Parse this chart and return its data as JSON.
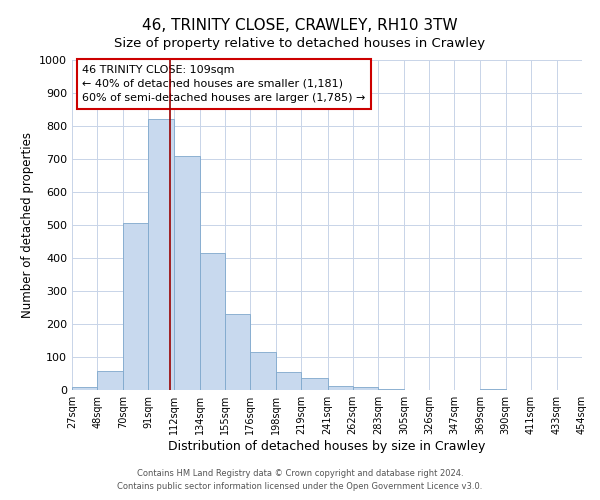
{
  "title": "46, TRINITY CLOSE, CRAWLEY, RH10 3TW",
  "subtitle": "Size of property relative to detached houses in Crawley",
  "xlabel": "Distribution of detached houses by size in Crawley",
  "ylabel": "Number of detached properties",
  "bin_edges": [
    27,
    48,
    70,
    91,
    112,
    134,
    155,
    176,
    198,
    219,
    241,
    262,
    283,
    305,
    326,
    347,
    369,
    390,
    411,
    433,
    454
  ],
  "bar_heights": [
    8,
    57,
    505,
    820,
    710,
    415,
    230,
    115,
    55,
    35,
    12,
    10,
    3,
    1,
    0,
    0,
    2,
    0,
    0,
    0
  ],
  "bar_color": "#c8d9ee",
  "bar_edge_color": "#7fa8cc",
  "red_line_x": 109,
  "ylim": [
    0,
    1000
  ],
  "yticks": [
    0,
    100,
    200,
    300,
    400,
    500,
    600,
    700,
    800,
    900,
    1000
  ],
  "annotation_title": "46 TRINITY CLOSE: 109sqm",
  "annotation_line1": "← 40% of detached houses are smaller (1,181)",
  "annotation_line2": "60% of semi-detached houses are larger (1,785) →",
  "annotation_box_facecolor": "#ffffff",
  "annotation_box_edgecolor": "#cc0000",
  "footer_line1": "Contains HM Land Registry data © Crown copyright and database right 2024.",
  "footer_line2": "Contains public sector information licensed under the Open Government Licence v3.0.",
  "background_color": "#ffffff",
  "grid_color": "#c8d4e8",
  "title_fontsize": 11,
  "subtitle_fontsize": 9.5,
  "ylabel_fontsize": 8.5,
  "xlabel_fontsize": 9
}
